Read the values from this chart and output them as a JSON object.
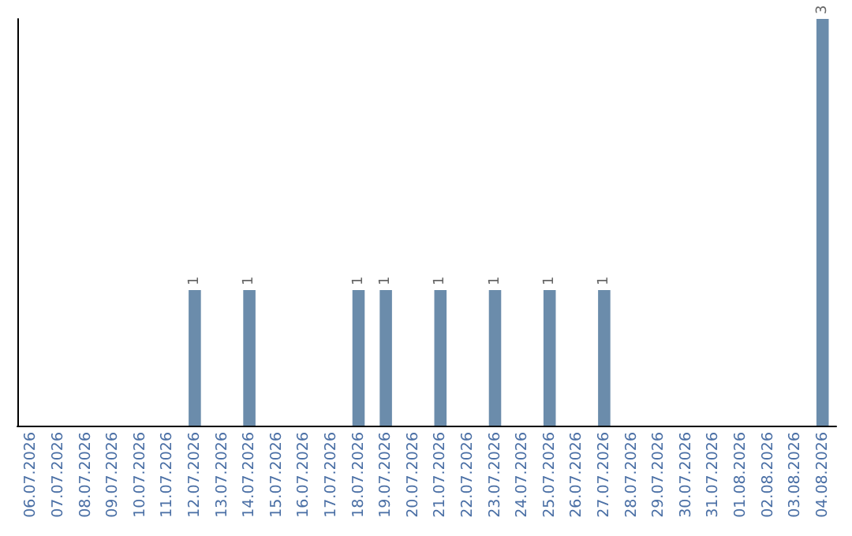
{
  "chart_data": {
    "type": "bar",
    "categories": [
      "06.07.2026",
      "07.07.2026",
      "08.07.2026",
      "09.07.2026",
      "10.07.2026",
      "11.07.2026",
      "12.07.2026",
      "13.07.2026",
      "14.07.2026",
      "15.07.2026",
      "16.07.2026",
      "17.07.2026",
      "18.07.2026",
      "19.07.2026",
      "20.07.2026",
      "21.07.2026",
      "22.07.2026",
      "23.07.2026",
      "24.07.2026",
      "25.07.2026",
      "26.07.2026",
      "27.07.2026",
      "28.07.2026",
      "29.07.2026",
      "30.07.2026",
      "31.07.2026",
      "01.08.2026",
      "02.08.2026",
      "03.08.2026",
      "04.08.2026"
    ],
    "values": [
      0,
      0,
      0,
      0,
      0,
      0,
      1,
      0,
      1,
      0,
      0,
      0,
      1,
      1,
      0,
      1,
      0,
      1,
      0,
      1,
      0,
      1,
      0,
      0,
      0,
      0,
      0,
      0,
      0,
      3
    ],
    "value_labels": [
      null,
      null,
      null,
      null,
      null,
      null,
      "1",
      null,
      "1",
      null,
      null,
      null,
      "1",
      "1",
      null,
      "1",
      null,
      "1",
      null,
      "1",
      null,
      "1",
      null,
      null,
      null,
      null,
      null,
      null,
      null,
      "3"
    ],
    "color": "#6b8cab",
    "tick_labels": "x"
  }
}
